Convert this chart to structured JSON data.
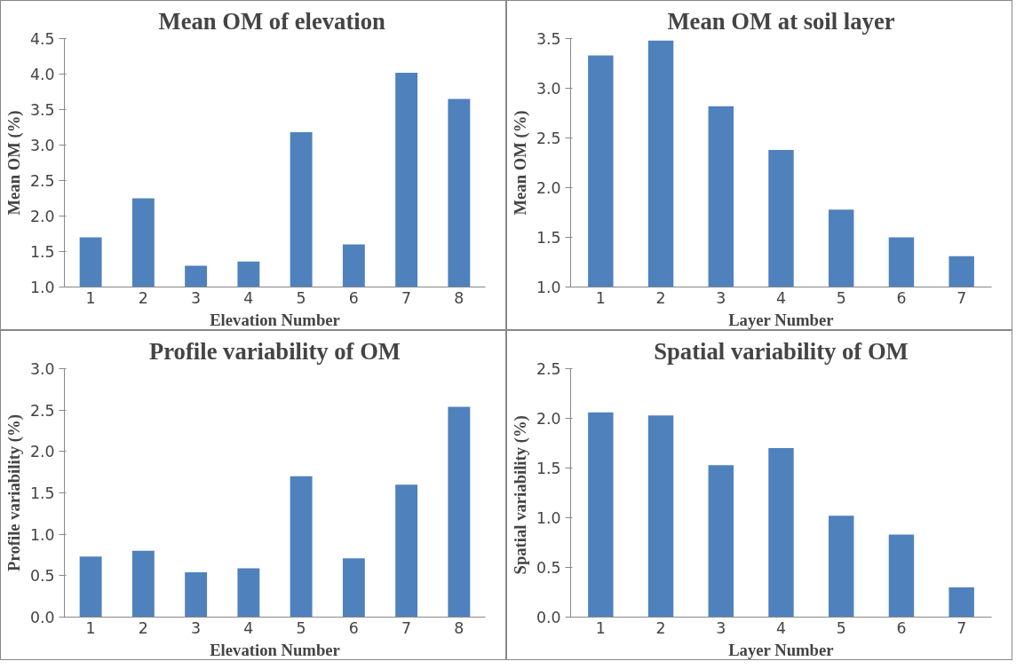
{
  "chart_data": [
    {
      "type": "bar",
      "title": "Mean OM  of elevation",
      "xlabel": "Elevation Number",
      "ylabel": "Mean OM (%)",
      "categories": [
        "1",
        "2",
        "3",
        "4",
        "5",
        "6",
        "7",
        "8"
      ],
      "values": [
        1.7,
        2.25,
        1.3,
        1.36,
        3.18,
        1.6,
        4.02,
        3.65
      ],
      "color": "#4f81bd",
      "ylim": [
        1.0,
        4.5
      ],
      "yticks": [
        {
          "value": 1.0,
          "label": "1.0"
        },
        {
          "value": 1.5,
          "label": "1.5"
        },
        {
          "value": 2.0,
          "label": "2.0"
        },
        {
          "value": 2.5,
          "label": "2.5"
        },
        {
          "value": 3.0,
          "label": "3.0"
        },
        {
          "value": 3.5,
          "label": "3.5"
        },
        {
          "value": 4.0,
          "label": "4.0"
        },
        {
          "value": 4.5,
          "label": "4.5"
        }
      ]
    },
    {
      "type": "bar",
      "title": "Mean OM at soil layer",
      "xlabel": "Layer Number",
      "ylabel": "Mean OM (%)",
      "categories": [
        "1",
        "2",
        "3",
        "4",
        "5",
        "6",
        "7"
      ],
      "values": [
        3.33,
        3.48,
        2.82,
        2.38,
        1.78,
        1.5,
        1.31
      ],
      "color": "#4f81bd",
      "ylim": [
        1.0,
        3.5
      ],
      "yticks": [
        {
          "value": 1.0,
          "label": "1.0"
        },
        {
          "value": 1.5,
          "label": "1.5"
        },
        {
          "value": 2.0,
          "label": "2.0"
        },
        {
          "value": 2.5,
          "label": "2.5"
        },
        {
          "value": 3.0,
          "label": "3.0"
        },
        {
          "value": 3.5,
          "label": "3.5"
        }
      ]
    },
    {
      "type": "bar",
      "title": "Profile variability of OM",
      "xlabel": "Elevation Number",
      "ylabel": "Profile variability (%)",
      "categories": [
        "1",
        "2",
        "3",
        "4",
        "5",
        "6",
        "7",
        "8"
      ],
      "values": [
        0.73,
        0.8,
        0.54,
        0.59,
        1.7,
        0.71,
        1.6,
        2.54
      ],
      "color": "#4f81bd",
      "ylim": [
        0.0,
        3.0
      ],
      "yticks": [
        {
          "value": 0.0,
          "label": "0.0"
        },
        {
          "value": 0.5,
          "label": "0.5"
        },
        {
          "value": 1.0,
          "label": "1.0"
        },
        {
          "value": 1.5,
          "label": "1.5"
        },
        {
          "value": 2.0,
          "label": "2.0"
        },
        {
          "value": 2.5,
          "label": "2.5"
        },
        {
          "value": 3.0,
          "label": "3.0"
        }
      ]
    },
    {
      "type": "bar",
      "title": "Spatial variability of OM",
      "xlabel": "Layer Number",
      "ylabel": "Spatial variability  (%)",
      "categories": [
        "1",
        "2",
        "3",
        "4",
        "5",
        "6",
        "7"
      ],
      "values": [
        2.06,
        2.03,
        1.53,
        1.7,
        1.02,
        0.83,
        0.3
      ],
      "color": "#4f81bd",
      "ylim": [
        0.0,
        2.5
      ],
      "yticks": [
        {
          "value": 0.0,
          "label": "0.0"
        },
        {
          "value": 0.5,
          "label": "0.5"
        },
        {
          "value": 1.0,
          "label": "1.0"
        },
        {
          "value": 1.5,
          "label": "1.5"
        },
        {
          "value": 2.0,
          "label": "2.0"
        },
        {
          "value": 2.5,
          "label": "2.5"
        }
      ]
    }
  ]
}
